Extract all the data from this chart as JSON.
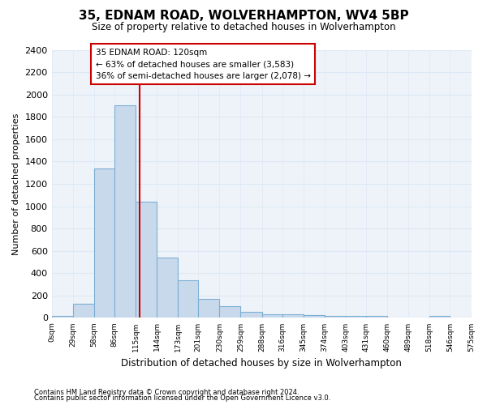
{
  "title": "35, EDNAM ROAD, WOLVERHAMPTON, WV4 5BP",
  "subtitle": "Size of property relative to detached houses in Wolverhampton",
  "xlabel": "Distribution of detached houses by size in Wolverhampton",
  "ylabel": "Number of detached properties",
  "bar_color": "#c9d9ec",
  "bar_edge_color": "#7bafd4",
  "bar_values": [
    20,
    130,
    1340,
    1900,
    1040,
    540,
    340,
    170,
    105,
    55,
    35,
    30,
    25,
    20,
    15,
    20,
    0,
    0,
    20,
    0
  ],
  "bin_edges": [
    0,
    29,
    58,
    86,
    115,
    144,
    173,
    201,
    230,
    259,
    288,
    316,
    345,
    374,
    403,
    431,
    460,
    489,
    518,
    546,
    575
  ],
  "ylim": [
    0,
    2400
  ],
  "yticks": [
    0,
    200,
    400,
    600,
    800,
    1000,
    1200,
    1400,
    1600,
    1800,
    2000,
    2200,
    2400
  ],
  "grid_color": "#dce8f5",
  "background_color": "#eef3f9",
  "vline_x": 120,
  "annotation_title": "35 EDNAM ROAD: 120sqm",
  "annotation_line1": "← 63% of detached houses are smaller (3,583)",
  "annotation_line2": "36% of semi-detached houses are larger (2,078) →",
  "annotation_box_color": "#ffffff",
  "annotation_box_edge": "#cc0000",
  "footnote1": "Contains HM Land Registry data © Crown copyright and database right 2024.",
  "footnote2": "Contains public sector information licensed under the Open Government Licence v3.0."
}
